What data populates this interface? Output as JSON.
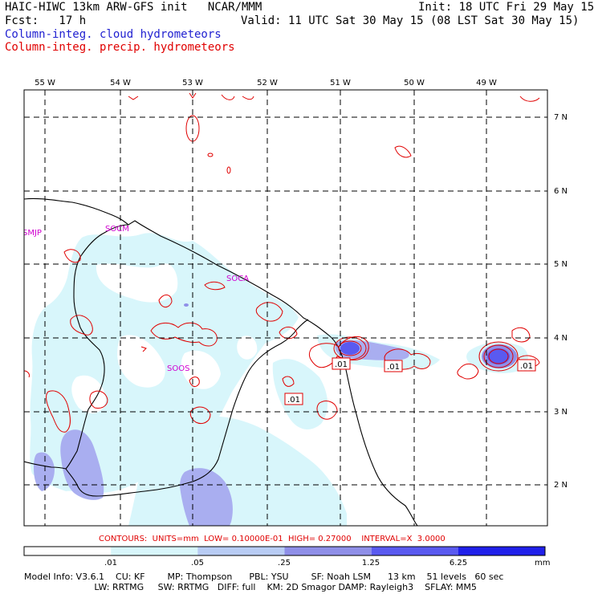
{
  "header": {
    "title_left": "HAIC-HIWC 13km ARW-GFS init   NCAR/MMM",
    "init": "Init: 18 UTC Fri 29 May 15",
    "fcst": "Fcst:   17 h",
    "valid": "Valid: 11 UTC Sat 30 May 15 (08 LST Sat 30 May 15)",
    "legend_cloud": "Column-integ. cloud hydrometeors",
    "legend_precip": "Column-integ. precip. hydrometeors"
  },
  "axes": {
    "lon_labels": [
      "55 W",
      "54 W",
      "53 W",
      "52 W",
      "51 W",
      "50 W",
      "49 W"
    ],
    "lat_labels": [
      "7 N",
      "6 N",
      "5 N",
      "4 N",
      "3 N",
      "2 N"
    ]
  },
  "stations": [
    "SMJP",
    "SOCM",
    "SOCA",
    "SOOS"
  ],
  "contour_labels": [
    ".01",
    ".01",
    ".01",
    ".01"
  ],
  "contours_info": "CONTOURS:  UNITS=mm  LOW= 0.10000E-01  HIGH= 0.27000    INTERVAL=X  3.0000",
  "colorbar": {
    "ticks": [
      ".01",
      ".05",
      ".25",
      "1.25",
      "6.25"
    ],
    "unit": "mm",
    "colors": [
      "#ffffff",
      "#d8f6fb",
      "#b8ccf4",
      "#8f8fe8",
      "#5a5af0",
      "#2020ea"
    ]
  },
  "model_info": {
    "line1": "Model Info: V3.6.1    CU: KF        MP: Thompson      PBL: YSU        SF: Noah LSM      13 km    51 levels   60 sec",
    "line2": "                         LW: RRTMG     SW: RRTMG   DIFF: full    KM: 2D Smagor DAMP: Rayleigh3    SFLAY: MM5"
  }
}
